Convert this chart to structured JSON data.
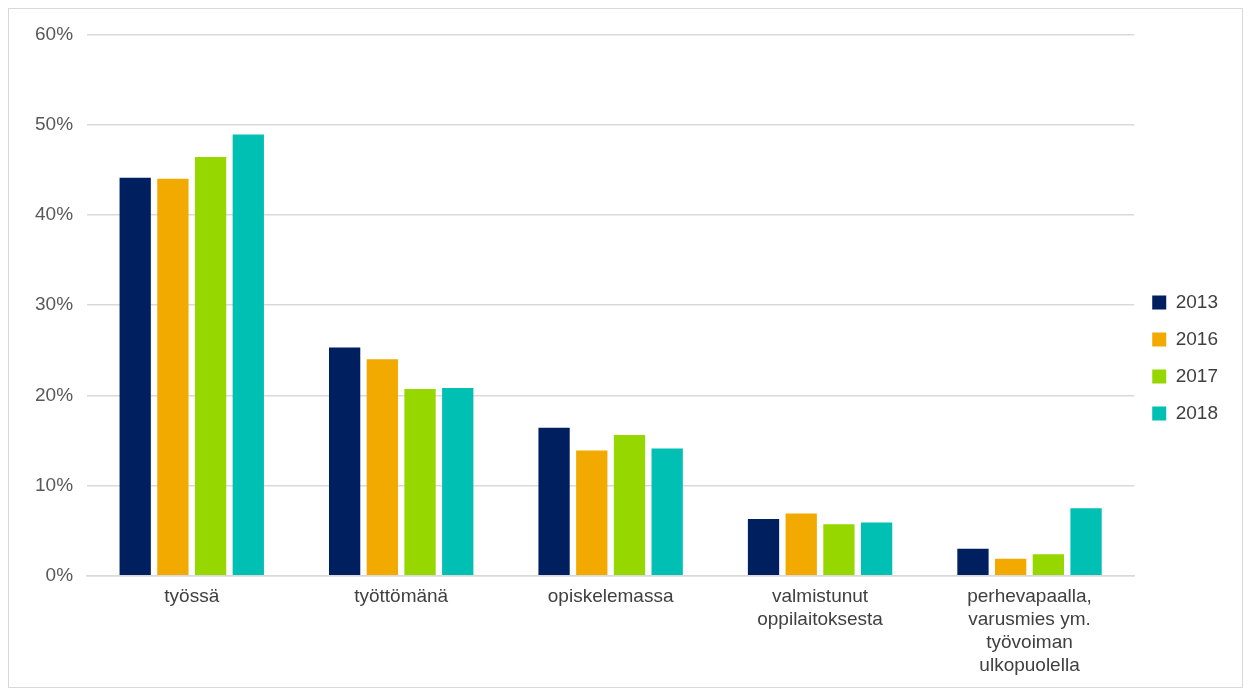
{
  "chart_data": {
    "type": "bar",
    "categories": [
      "työssä",
      "työttömänä",
      "opiskelemassa",
      "valmistunut\noppilaitoksesta",
      "perhevapaalla,\nvarusmies ym.\ntyövoiman\nulkopuolella"
    ],
    "series": [
      {
        "name": "2013",
        "color": "#001f5f",
        "values": [
          44.1,
          25.3,
          16.4,
          6.3,
          3.0
        ]
      },
      {
        "name": "2016",
        "color": "#f2a900",
        "values": [
          44.0,
          24.0,
          13.9,
          6.9,
          1.9
        ]
      },
      {
        "name": "2017",
        "color": "#97d700",
        "values": [
          46.4,
          20.7,
          15.6,
          5.7,
          2.4
        ]
      },
      {
        "name": "2018",
        "color": "#00bfb3",
        "values": [
          48.9,
          20.8,
          14.1,
          5.9,
          7.5
        ]
      }
    ],
    "ylim": [
      0,
      60
    ],
    "yticks": [
      {
        "value": 0,
        "label": "0%"
      },
      {
        "value": 10,
        "label": "10%"
      },
      {
        "value": 20,
        "label": "20%"
      },
      {
        "value": 30,
        "label": "30%"
      },
      {
        "value": 40,
        "label": "40%"
      },
      {
        "value": 50,
        "label": "50%"
      },
      {
        "value": 60,
        "label": "60%"
      }
    ],
    "grid": "y",
    "legend": "right"
  }
}
